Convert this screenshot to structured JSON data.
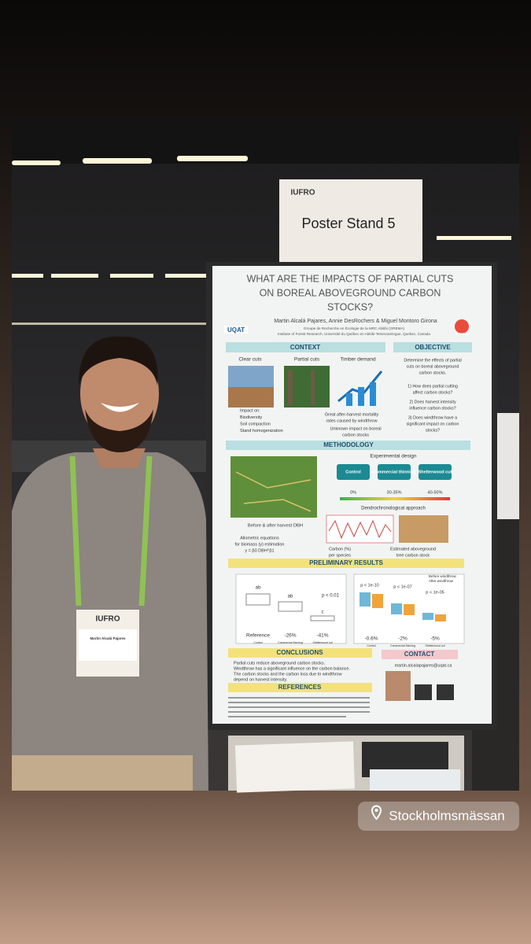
{
  "location": "Stockholmsmässan",
  "sign": {
    "logo": "IUFRO",
    "text": "Poster Stand 5"
  },
  "poster": {
    "title": [
      "WHAT ARE THE IMPACTS OF PARTIAL CUTS",
      "ON BOREAL ABOVEGROUND CARBON",
      "STOCKS?"
    ],
    "authors": "Martin Alcalá Pajares, Annie DesRochers & Miguel Montoro Girona",
    "affiliation": [
      "Groupe de Recherche en Écologie de la MRC Abitibi (GREMA)",
      "Institute of Forest Research, Université du Québec en Abitibi-Temiscamingue, Quebec, Canada"
    ],
    "logos": [
      "UQAT",
      "GREMA"
    ],
    "context": {
      "header": "CONTEXT",
      "images": [
        "Clear cuts",
        "Partial cuts",
        "Timber demand"
      ],
      "impact": [
        "Impact on:",
        "Biodiversity",
        "Soil compaction",
        "Stand homogenization"
      ],
      "mortality": [
        "Great after-harvest mortality",
        "rates caused by windthrow"
      ],
      "unknown": [
        "Unknown impact on boreal",
        "carbon stocks"
      ]
    },
    "objective": {
      "header": "OBJECTIVE",
      "lines": [
        "Determine the effects of partial",
        "cuts on boreal aboveground",
        "carbon stocks.",
        "1) How does partial cutting",
        "affect carbon stocks?",
        "2) Does harvest intensity",
        "influence carbon stocks?",
        "3) Does windthrow have a",
        "significant impact on carbon",
        "stocks?"
      ]
    },
    "methodology": {
      "header": "METHODOLOGY",
      "design": "Experimental design",
      "treatments": [
        "Control",
        "Commercial thinning",
        "Shelterwood cut"
      ],
      "intensity": [
        "0%",
        "30-35%",
        "40-50%"
      ],
      "dendro": "Dendrochronological approach",
      "dbh": "Before & after harvest DBH",
      "allometric": [
        "Allometric equations",
        "for biomass (y) estimation",
        "y = β0 DBH^β1"
      ],
      "carbon": [
        "Carbon (%)",
        "per species"
      ],
      "estimate": [
        "Estimated aboveground",
        "tree carbon stock"
      ]
    },
    "results": {
      "header": "PRELIMINARY RESULTS",
      "left": {
        "p": "p < 0.01",
        "groups": [
          "ab",
          "ab",
          "c"
        ],
        "labels": [
          "Reference",
          "-26%",
          "-41%"
        ],
        "axis": [
          "Control",
          "Commercial thinning",
          "Shelterwood cut"
        ]
      },
      "right": {
        "p": [
          "p < 1e-10",
          "p < 1e-07",
          "p < 1e-05"
        ],
        "legend": [
          "Before windthrow",
          "After windthrow"
        ],
        "labels": [
          "-0.6%",
          "-2%",
          "-5%"
        ],
        "axis": [
          "Control",
          "Commercial thinning",
          "Shelterwood cut"
        ]
      }
    },
    "conclusions": {
      "header": "CONCLUSIONS",
      "lines": [
        "Partial cuts reduce aboveground carbon stocks.",
        "Windthrow has a significant influence on the carbon balance.",
        "The carbon stocks and the carbon loss due to windthrow",
        "depend on harvest intensity."
      ]
    },
    "contact": {
      "header": "CONTACT",
      "email": "martin.alcalapajares@uqat.ca"
    },
    "references": {
      "header": "REFERENCES"
    }
  },
  "badge": {
    "logo": "IUFRO",
    "name": "Martin Alcalá Pajares"
  }
}
